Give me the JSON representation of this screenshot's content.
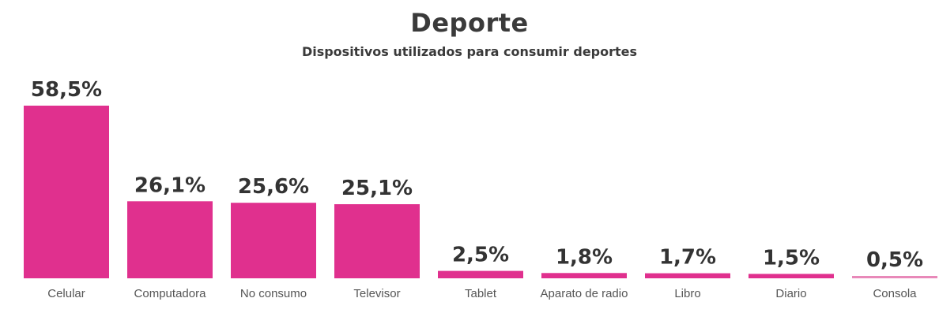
{
  "title": "Deporte",
  "subtitle": "Dispositivos utilizados para consumir deportes",
  "colors": {
    "bar": "#e0308e",
    "bar_light": "#e889b9",
    "text": "#333333"
  },
  "chart_data": {
    "type": "bar",
    "title": "Deporte",
    "subtitle": "Dispositivos utilizados para consumir deportes",
    "categories": [
      "Celular",
      "Computadora",
      "No consumo",
      "Televisor",
      "Tablet",
      "Aparato de radio",
      "Libro",
      "Diario",
      "Consola"
    ],
    "values": [
      58.5,
      26.1,
      25.6,
      25.1,
      2.5,
      1.8,
      1.7,
      1.5,
      0.5
    ],
    "value_labels": [
      "58,5%",
      "26,1%",
      "25,6%",
      "25,1%",
      "2,5%",
      "1,8%",
      "1,7%",
      "1,5%",
      "0,5%"
    ],
    "xlabel": "",
    "ylabel": "",
    "ylim": [
      0,
      58.5
    ],
    "grid": false,
    "legend": "none"
  }
}
